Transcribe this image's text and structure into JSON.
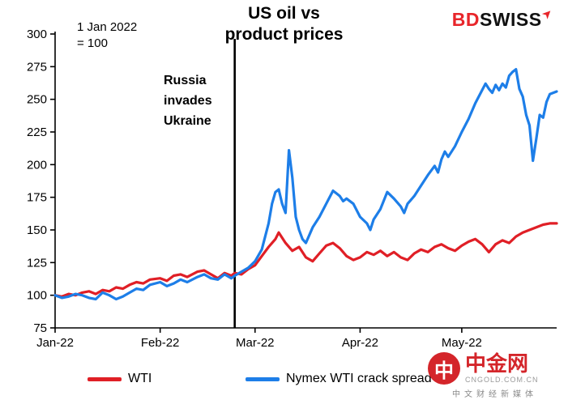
{
  "header": {
    "title": "US oil vs\nproduct prices",
    "note": "1 Jan 2022\n= 100"
  },
  "logos": {
    "bdswiss": {
      "bd": "BD",
      "swiss": "SWISS",
      "accent": "#e8252a"
    },
    "cngold": {
      "name": "中金网",
      "domain": "CNGOLD.COM.CN",
      "tagline": "中文财经新媒体",
      "accent": "#d4252a",
      "circle_glyph": "中"
    }
  },
  "chart_data": {
    "type": "line",
    "title": "US oil vs product prices",
    "note": "1 Jan 2022 = 100",
    "x_unit": "days since 1 Jan 2022",
    "xlim": [
      0,
      148
    ],
    "ylim": [
      75,
      300
    ],
    "yticks": [
      75,
      100,
      125,
      150,
      175,
      200,
      225,
      250,
      275,
      300
    ],
    "xticks": [
      {
        "day": 0,
        "label": "Jan-22"
      },
      {
        "day": 31,
        "label": "Feb-22"
      },
      {
        "day": 59,
        "label": "Mar-22"
      },
      {
        "day": 90,
        "label": "Apr-22"
      },
      {
        "day": 120,
        "label": "May-22"
      }
    ],
    "annotation": {
      "day": 53,
      "label": "Russia\ninvades\nUkraine"
    },
    "legend_position": "bottom",
    "grid": false,
    "series": [
      {
        "id": "wti",
        "name": "WTI",
        "color": "#e01f26",
        "points": [
          [
            0,
            100
          ],
          [
            2,
            99
          ],
          [
            4,
            101
          ],
          [
            6,
            100
          ],
          [
            8,
            102
          ],
          [
            10,
            103
          ],
          [
            12,
            101
          ],
          [
            14,
            104
          ],
          [
            16,
            103
          ],
          [
            18,
            106
          ],
          [
            20,
            105
          ],
          [
            22,
            108
          ],
          [
            24,
            110
          ],
          [
            26,
            109
          ],
          [
            28,
            112
          ],
          [
            31,
            113
          ],
          [
            33,
            111
          ],
          [
            35,
            115
          ],
          [
            37,
            116
          ],
          [
            39,
            114
          ],
          [
            42,
            118
          ],
          [
            44,
            119
          ],
          [
            46,
            116
          ],
          [
            48,
            113
          ],
          [
            50,
            117
          ],
          [
            52,
            115
          ],
          [
            53,
            117
          ],
          [
            55,
            116
          ],
          [
            57,
            120
          ],
          [
            59,
            123
          ],
          [
            61,
            130
          ],
          [
            63,
            137
          ],
          [
            65,
            143
          ],
          [
            66,
            148
          ],
          [
            68,
            140
          ],
          [
            70,
            134
          ],
          [
            72,
            137
          ],
          [
            74,
            129
          ],
          [
            76,
            126
          ],
          [
            78,
            132
          ],
          [
            80,
            138
          ],
          [
            82,
            140
          ],
          [
            84,
            136
          ],
          [
            86,
            130
          ],
          [
            88,
            127
          ],
          [
            90,
            129
          ],
          [
            92,
            133
          ],
          [
            94,
            131
          ],
          [
            96,
            134
          ],
          [
            98,
            130
          ],
          [
            100,
            133
          ],
          [
            102,
            129
          ],
          [
            104,
            127
          ],
          [
            106,
            132
          ],
          [
            108,
            135
          ],
          [
            110,
            133
          ],
          [
            112,
            137
          ],
          [
            114,
            139
          ],
          [
            116,
            136
          ],
          [
            118,
            134
          ],
          [
            120,
            138
          ],
          [
            122,
            141
          ],
          [
            124,
            143
          ],
          [
            126,
            139
          ],
          [
            128,
            133
          ],
          [
            130,
            139
          ],
          [
            132,
            142
          ],
          [
            134,
            140
          ],
          [
            136,
            145
          ],
          [
            138,
            148
          ],
          [
            140,
            150
          ],
          [
            142,
            152
          ],
          [
            144,
            154
          ],
          [
            146,
            155
          ],
          [
            148,
            155
          ]
        ]
      },
      {
        "id": "crack-spread",
        "name": "Nymex WTI crack spread",
        "color": "#1d7ee8",
        "points": [
          [
            0,
            100
          ],
          [
            2,
            98
          ],
          [
            4,
            99
          ],
          [
            6,
            101
          ],
          [
            8,
            100
          ],
          [
            10,
            98
          ],
          [
            12,
            97
          ],
          [
            14,
            102
          ],
          [
            16,
            100
          ],
          [
            18,
            97
          ],
          [
            20,
            99
          ],
          [
            22,
            102
          ],
          [
            24,
            105
          ],
          [
            26,
            104
          ],
          [
            28,
            108
          ],
          [
            31,
            110
          ],
          [
            33,
            107
          ],
          [
            35,
            109
          ],
          [
            37,
            112
          ],
          [
            39,
            110
          ],
          [
            42,
            114
          ],
          [
            44,
            116
          ],
          [
            46,
            113
          ],
          [
            48,
            112
          ],
          [
            50,
            116
          ],
          [
            52,
            113
          ],
          [
            53,
            115
          ],
          [
            55,
            118
          ],
          [
            57,
            121
          ],
          [
            59,
            126
          ],
          [
            61,
            135
          ],
          [
            63,
            155
          ],
          [
            64,
            170
          ],
          [
            65,
            179
          ],
          [
            66,
            181
          ],
          [
            67,
            170
          ],
          [
            68,
            163
          ],
          [
            69,
            211
          ],
          [
            70,
            190
          ],
          [
            71,
            160
          ],
          [
            72,
            150
          ],
          [
            73,
            143
          ],
          [
            74,
            140
          ],
          [
            76,
            152
          ],
          [
            78,
            160
          ],
          [
            80,
            170
          ],
          [
            82,
            180
          ],
          [
            83,
            178
          ],
          [
            84,
            176
          ],
          [
            85,
            172
          ],
          [
            86,
            174
          ],
          [
            88,
            170
          ],
          [
            90,
            160
          ],
          [
            92,
            155
          ],
          [
            93,
            150
          ],
          [
            94,
            158
          ],
          [
            96,
            166
          ],
          [
            98,
            179
          ],
          [
            100,
            174
          ],
          [
            102,
            168
          ],
          [
            103,
            163
          ],
          [
            104,
            170
          ],
          [
            106,
            176
          ],
          [
            108,
            184
          ],
          [
            110,
            192
          ],
          [
            112,
            199
          ],
          [
            113,
            194
          ],
          [
            114,
            204
          ],
          [
            115,
            210
          ],
          [
            116,
            206
          ],
          [
            118,
            214
          ],
          [
            120,
            225
          ],
          [
            122,
            235
          ],
          [
            124,
            247
          ],
          [
            126,
            257
          ],
          [
            127,
            262
          ],
          [
            128,
            258
          ],
          [
            129,
            255
          ],
          [
            130,
            261
          ],
          [
            131,
            257
          ],
          [
            132,
            262
          ],
          [
            133,
            259
          ],
          [
            134,
            268
          ],
          [
            135,
            271
          ],
          [
            136,
            273
          ],
          [
            137,
            258
          ],
          [
            138,
            252
          ],
          [
            139,
            238
          ],
          [
            140,
            230
          ],
          [
            141,
            203
          ],
          [
            142,
            220
          ],
          [
            143,
            238
          ],
          [
            144,
            236
          ],
          [
            145,
            248
          ],
          [
            146,
            254
          ],
          [
            148,
            256
          ]
        ]
      }
    ]
  }
}
